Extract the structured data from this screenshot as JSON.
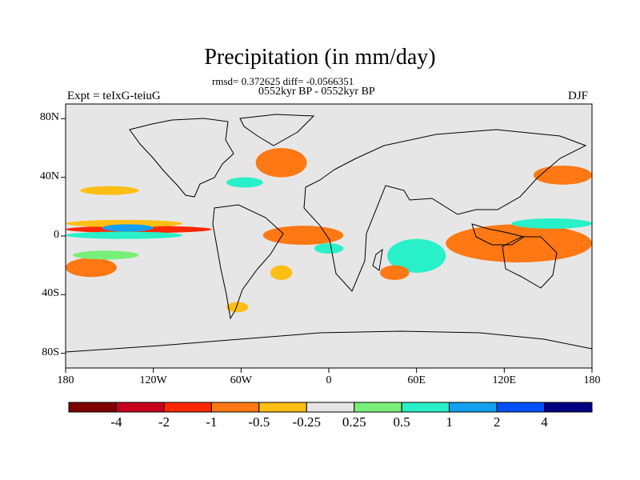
{
  "title": "Precipitation (in mm/day)",
  "stats": "rmsd= 0.372625 diff= -0.0566351",
  "period": "0552kyr BP - 0552kyr BP",
  "experiment": "Expt = teIxG-teiuG",
  "season": "DJF",
  "map": {
    "projection": "cylindrical equidistant",
    "lon_range": [
      -180,
      180
    ],
    "lat_range": [
      -90,
      90
    ],
    "background_color": "#e6e6e6",
    "lat_ticks": [
      "80N",
      "40N",
      "0",
      "40S",
      "80S"
    ],
    "lon_ticks": [
      "180",
      "120W",
      "60W",
      "0",
      "60E",
      "120E",
      "180"
    ]
  },
  "colorbar": {
    "colors": [
      "#7f0000",
      "#c8001e",
      "#ff2800",
      "#ff7814",
      "#ffbe14",
      "#e6e6e6",
      "#78f078",
      "#28f0c8",
      "#14a0f0",
      "#0050ff",
      "#000082"
    ],
    "labels": [
      "-4",
      "-2",
      "-1",
      "-0.5",
      "-0.25",
      "0.25",
      "0.5",
      "1",
      "2",
      "4"
    ]
  },
  "anomaly_regions": [
    {
      "name": "tropical-pacific-wet-band",
      "color": "#ff2800",
      "lon": [
        -180,
        -80
      ],
      "lat": [
        2,
        7
      ]
    },
    {
      "name": "tropical-pacific-orange-band",
      "color": "#ffbe14",
      "lon": [
        -180,
        -100
      ],
      "lat": [
        6,
        11
      ]
    },
    {
      "name": "tropical-pacific-dry-band",
      "color": "#28f0c8",
      "lon": [
        -180,
        -100
      ],
      "lat": [
        -2,
        3
      ]
    },
    {
      "name": "central-pacific-blue-patch",
      "color": "#14a0f0",
      "lon": [
        -155,
        -120
      ],
      "lat": [
        3,
        8
      ]
    },
    {
      "name": "north-pacific-band",
      "color": "#ffbe14",
      "lon": [
        -170,
        -130
      ],
      "lat": [
        28,
        34
      ]
    },
    {
      "name": "spcz-orange",
      "color": "#ff7814",
      "lon": [
        -180,
        -145
      ],
      "lat": [
        -28,
        -15
      ]
    },
    {
      "name": "spcz-green",
      "color": "#78f078",
      "lon": [
        -175,
        -130
      ],
      "lat": [
        -16,
        -10
      ]
    },
    {
      "name": "north-atlantic-wet",
      "color": "#ff7814",
      "lon": [
        -50,
        -15
      ],
      "lat": [
        40,
        60
      ]
    },
    {
      "name": "north-atlantic-cyan",
      "color": "#28f0c8",
      "lon": [
        -70,
        -45
      ],
      "lat": [
        33,
        40
      ]
    },
    {
      "name": "atlantic-itcz-wet",
      "color": "#ff2800",
      "lon": [
        -40,
        5
      ],
      "lat": [
        -3,
        4
      ]
    },
    {
      "name": "atlantic-itcz-orange",
      "color": "#ff7814",
      "lon": [
        -45,
        10
      ],
      "lat": [
        -6,
        7
      ]
    },
    {
      "name": "atlantic-south-cyan",
      "color": "#28f0c8",
      "lon": [
        -10,
        10
      ],
      "lat": [
        -12,
        -5
      ]
    },
    {
      "name": "south-atlantic-orange",
      "color": "#ffbe14",
      "lon": [
        -40,
        -25
      ],
      "lat": [
        -30,
        -20
      ]
    },
    {
      "name": "indian-ocean-blue",
      "color": "#14a0f0",
      "lon": [
        50,
        70
      ],
      "lat": [
        -20,
        -5
      ]
    },
    {
      "name": "indian-ocean-cyan",
      "color": "#28f0c8",
      "lon": [
        40,
        80
      ],
      "lat": [
        -25,
        -2
      ]
    },
    {
      "name": "madagascar-wet",
      "color": "#ff7814",
      "lon": [
        35,
        55
      ],
      "lat": [
        -30,
        -20
      ]
    },
    {
      "name": "maritime-continent-wet",
      "color": "#ff2800",
      "lon": [
        85,
        160
      ],
      "lat": [
        -15,
        5
      ]
    },
    {
      "name": "maritime-continent-orange",
      "color": "#ff7814",
      "lon": [
        80,
        180
      ],
      "lat": [
        -18,
        8
      ]
    },
    {
      "name": "west-pacific-cyan",
      "color": "#28f0c8",
      "lon": [
        125,
        180
      ],
      "lat": [
        5,
        12
      ]
    },
    {
      "name": "northwest-pacific-wet",
      "color": "#ff7814",
      "lon": [
        140,
        180
      ],
      "lat": [
        35,
        48
      ]
    },
    {
      "name": "southern-ocean-orange",
      "color": "#ffbe14",
      "lon": [
        -70,
        -55
      ],
      "lat": [
        -52,
        -45
      ]
    }
  ]
}
